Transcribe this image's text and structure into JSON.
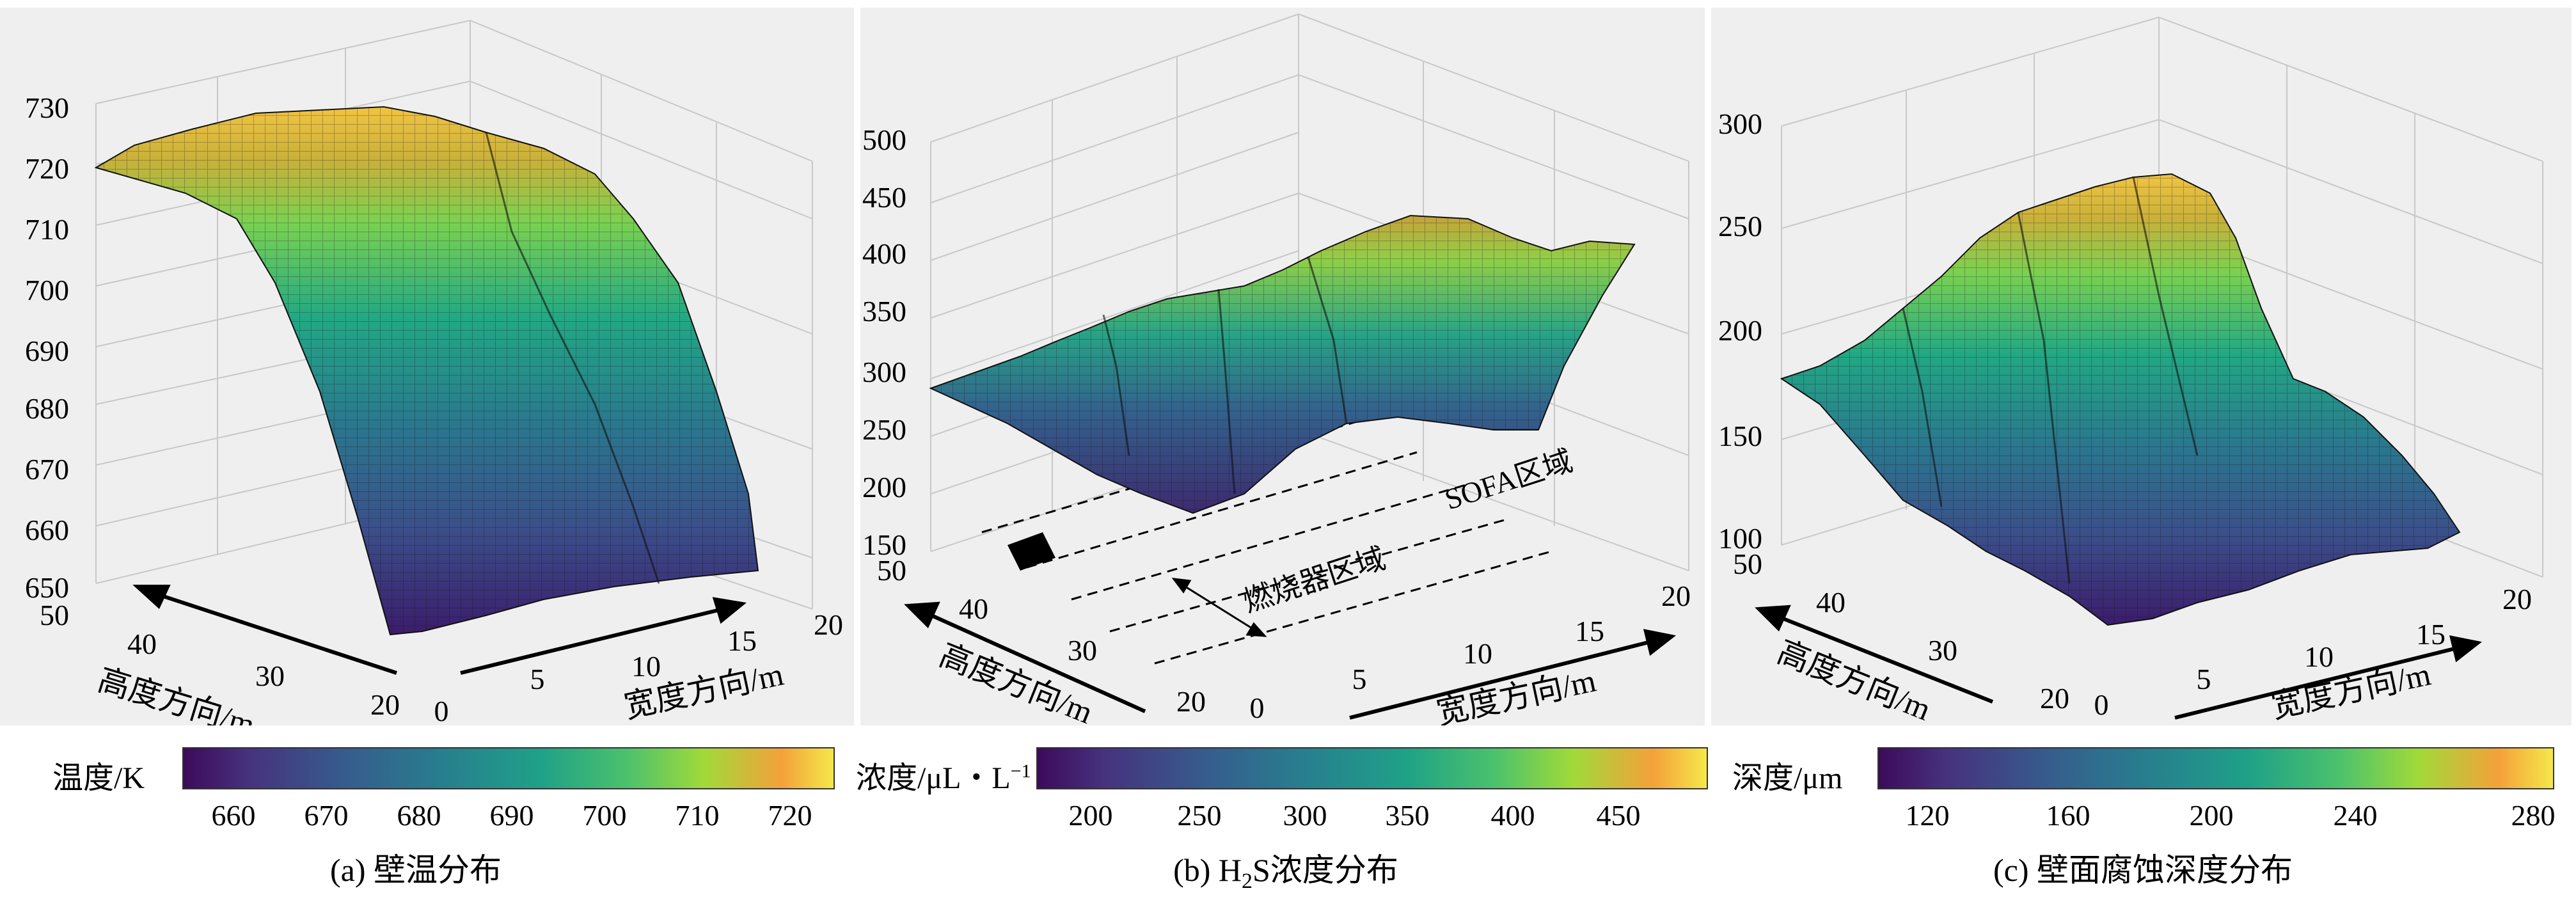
{
  "panels": [
    {
      "id": "a",
      "z_ticks": [
        "730",
        "720",
        "710",
        "700",
        "690",
        "680",
        "670",
        "660",
        "650"
      ],
      "depth_ticks": [
        "50",
        "40",
        "30",
        "20"
      ],
      "width_ticks": [
        "0",
        "5",
        "10",
        "15",
        "20"
      ],
      "xlabel": "宽度方向/m",
      "ylabel": "高度方向/m",
      "colorbar": {
        "label": "温度/K",
        "ticks": [
          "660",
          "670",
          "680",
          "690",
          "700",
          "710",
          "720"
        ]
      },
      "caption": "(a) 壁温分布"
    },
    {
      "id": "b",
      "z_ticks": [
        "500",
        "450",
        "400",
        "350",
        "300",
        "250",
        "200",
        "150"
      ],
      "depth_ticks": [
        "50",
        "40",
        "30",
        "20"
      ],
      "width_ticks": [
        "0",
        "5",
        "10",
        "15",
        "20"
      ],
      "xlabel": "宽度方向/m",
      "ylabel": "高度方向/m",
      "annotations": {
        "sofa": "SOFA区域",
        "burner": "燃烧器区域"
      },
      "colorbar": {
        "label": "浓度/μL・L",
        "label_sup": "−1",
        "ticks": [
          "200",
          "250",
          "300",
          "350",
          "400",
          "450"
        ]
      },
      "caption_pre": "(b) H",
      "caption_sub": "2",
      "caption_post": "S浓度分布"
    },
    {
      "id": "c",
      "z_ticks": [
        "300",
        "250",
        "200",
        "150",
        "100"
      ],
      "depth_ticks": [
        "50",
        "40",
        "30",
        "20"
      ],
      "width_ticks": [
        "0",
        "5",
        "10",
        "15",
        "20"
      ],
      "xlabel": "宽度方向/m",
      "ylabel": "高度方向/m",
      "colorbar": {
        "label": "深度/μm",
        "ticks": [
          "120",
          "160",
          "200",
          "240",
          "280"
        ]
      },
      "caption": "(c) 壁面腐蚀深度分布"
    }
  ],
  "chart_data": [
    {
      "type": "surface",
      "title": "(a) 壁温分布",
      "xlabel": "宽度方向/m",
      "ylabel": "高度方向/m",
      "zlabel": "温度/K",
      "xlim": [
        0,
        20
      ],
      "ylim": [
        20,
        50
      ],
      "zlim": [
        650,
        730
      ],
      "x_ticks": [
        0,
        5,
        10,
        15,
        20
      ],
      "y_ticks": [
        20,
        30,
        40,
        50
      ],
      "z_ticks": [
        650,
        660,
        670,
        680,
        690,
        700,
        710,
        720,
        730
      ],
      "profile_height_m": [
        50,
        47,
        44,
        41,
        38,
        35,
        32,
        29,
        26,
        23,
        20
      ],
      "profile_value": [
        720,
        722,
        718,
        708,
        697,
        686,
        676,
        668,
        662,
        658,
        656
      ],
      "colorbar_range": [
        655,
        725
      ],
      "colorbar_ticks": [
        660,
        670,
        680,
        690,
        700,
        710,
        720
      ]
    },
    {
      "type": "surface",
      "title": "(b) H2S浓度分布",
      "xlabel": "宽度方向/m",
      "ylabel": "高度方向/m",
      "zlabel": "浓度/μL・L−1",
      "xlim": [
        0,
        20
      ],
      "ylim": [
        20,
        50
      ],
      "zlim": [
        150,
        500
      ],
      "x_ticks": [
        0,
        5,
        10,
        15,
        20
      ],
      "y_ticks": [
        20,
        30,
        40,
        50
      ],
      "z_ticks": [
        150,
        200,
        250,
        300,
        350,
        400,
        450,
        500
      ],
      "profile_width_m": [
        0,
        2,
        4,
        6,
        8,
        10,
        12,
        14,
        16,
        18,
        20
      ],
      "profile_value": [
        280,
        300,
        330,
        360,
        330,
        340,
        380,
        400,
        390,
        360,
        400
      ],
      "annotations": [
        "SOFA区域",
        "燃烧器区域"
      ],
      "colorbar_range": [
        170,
        490
      ],
      "colorbar_ticks": [
        200,
        250,
        300,
        350,
        400,
        450
      ]
    },
    {
      "type": "surface",
      "title": "(c) 壁面腐蚀深度分布",
      "xlabel": "宽度方向/m",
      "ylabel": "高度方向/m",
      "zlabel": "深度/μm",
      "xlim": [
        0,
        20
      ],
      "ylim": [
        20,
        50
      ],
      "zlim": [
        100,
        300
      ],
      "x_ticks": [
        0,
        5,
        10,
        15,
        20
      ],
      "y_ticks": [
        20,
        30,
        40,
        50
      ],
      "z_ticks": [
        100,
        150,
        200,
        250,
        300
      ],
      "profile_width_m": [
        0,
        2,
        4,
        6,
        8,
        10,
        12,
        14,
        16,
        18,
        20
      ],
      "profile_value": [
        180,
        190,
        215,
        260,
        275,
        275,
        270,
        250,
        200,
        150,
        125
      ],
      "colorbar_range": [
        110,
        280
      ],
      "colorbar_ticks": [
        120,
        160,
        200,
        240,
        280
      ]
    }
  ]
}
